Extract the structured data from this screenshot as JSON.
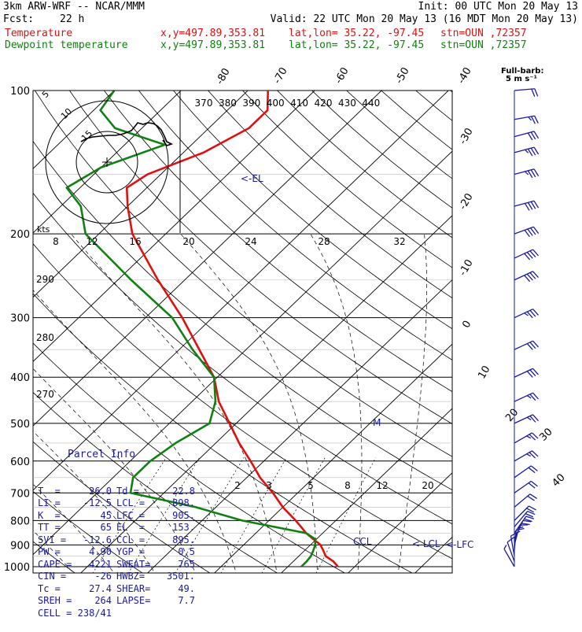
{
  "header": {
    "model": "3km ARW-WRF -- NCAR/MMM",
    "init": "Init: 00 UTC Mon 20 May 13",
    "fcst_label": "Fcst:",
    "fcst_value": "22 h",
    "valid": "Valid: 22 UTC Mon 20 May 13 (16 MDT Mon 20 May 13)",
    "temp_name": "Temperature",
    "dew_name": "Dewpoint temperature",
    "xy": "x,y=497.89,353.81",
    "latlon": "lat,lon= 35.22, -97.45",
    "stn": "stn=OUN ,72357"
  },
  "barb_legend": {
    "title": "Full-barb:",
    "value": "5 m s⁻¹"
  },
  "hodograph": {
    "units": "kts",
    "rings": [
      "5",
      "10",
      "15"
    ]
  },
  "annotations": {
    "el": "<-EL",
    "lcl": "< LCL",
    "lfc": "<-LFC",
    "ccl": "CCL",
    "m": "M"
  },
  "parcel_info": {
    "title": "Parcel Info",
    "rows": [
      [
        "T  =",
        "26.0",
        "Td =",
        "22.8"
      ],
      [
        "LI =",
        "-12.5",
        "LCL =",
        "898."
      ],
      [
        "K  =",
        "45",
        "LFC =",
        "905."
      ],
      [
        "TT =",
        "65",
        "EL  =",
        "153."
      ],
      [
        "SVI =",
        "-12.6",
        "CCL =",
        "895."
      ],
      [
        "PW =",
        "4.90",
        "YGP =",
        "0.5"
      ],
      [
        "CAPE =",
        "4221",
        "SWEAT=",
        "765"
      ],
      [
        "CIN =",
        "-26",
        "HWBZ=",
        "3501."
      ],
      [
        "Tc =",
        "27.4",
        "SHEAR=",
        "49."
      ],
      [
        "SREH =",
        "264",
        "LAPSE=",
        "7.7"
      ],
      [
        "CELL =",
        "238/41",
        "",
        ""
      ]
    ]
  },
  "chart_data": {
    "type": "skew-T log-p sounding",
    "y_axis": {
      "scale": "log",
      "ticks": [
        100,
        200,
        300,
        400,
        500,
        600,
        700,
        800,
        900,
        1000
      ],
      "ylim": [
        1000,
        100
      ]
    },
    "isotherms": [
      -80,
      -70,
      -60,
      -50,
      -40,
      -30,
      -20,
      -10,
      0,
      10,
      20,
      30,
      40
    ],
    "theta_e_labels": [
      370,
      380,
      390,
      400,
      410,
      420,
      430,
      440
    ],
    "theta_labels": [
      290,
      280,
      270
    ],
    "mixing_ratio_labels": [
      "2",
      "3",
      "5",
      "8",
      "12",
      "20"
    ],
    "hodograph_speed_labels": [
      "8",
      "12",
      "16",
      "20",
      "24",
      "28",
      "32"
    ],
    "series": [
      {
        "name": "Temperature",
        "color": "#e01010",
        "points": [
          [
            1000,
            27.5
          ],
          [
            975,
            26
          ],
          [
            950,
            24
          ],
          [
            925,
            22.8
          ],
          [
            900,
            21.5
          ],
          [
            875,
            19.5
          ],
          [
            850,
            17.5
          ],
          [
            825,
            15.8
          ],
          [
            800,
            14
          ],
          [
            750,
            10
          ],
          [
            700,
            6.3
          ],
          [
            650,
            2
          ],
          [
            600,
            -2
          ],
          [
            550,
            -6.5
          ],
          [
            500,
            -11
          ],
          [
            450,
            -16
          ],
          [
            400,
            -20.5
          ],
          [
            350,
            -27
          ],
          [
            300,
            -34.5
          ],
          [
            250,
            -44
          ],
          [
            200,
            -55
          ],
          [
            175,
            -60
          ],
          [
            160,
            -63
          ],
          [
            150,
            -62
          ],
          [
            135,
            -57
          ],
          [
            120,
            -54
          ],
          [
            110,
            -54
          ],
          [
            100,
            -57
          ]
        ]
      },
      {
        "name": "Dewpoint temperature",
        "color": "#108010",
        "points": [
          [
            1000,
            22
          ],
          [
            975,
            22
          ],
          [
            950,
            21.8
          ],
          [
            925,
            21.3
          ],
          [
            900,
            20.7
          ],
          [
            875,
            19.8
          ],
          [
            850,
            17.5
          ],
          [
            800,
            6
          ],
          [
            750,
            -3
          ],
          [
            700,
            -15
          ],
          [
            650,
            -17
          ],
          [
            600,
            -17
          ],
          [
            550,
            -16
          ],
          [
            500,
            -14
          ],
          [
            450,
            -16.5
          ],
          [
            400,
            -20.5
          ],
          [
            350,
            -28
          ],
          [
            300,
            -36
          ],
          [
            250,
            -48
          ],
          [
            200,
            -62
          ],
          [
            175,
            -67
          ],
          [
            160,
            -72
          ],
          [
            145,
            -70
          ],
          [
            130,
            -64
          ],
          [
            120,
            -74
          ],
          [
            110,
            -79
          ],
          [
            100,
            -80
          ]
        ]
      }
    ],
    "wind_barbs": [
      [
        1000,
        150,
        6
      ],
      [
        975,
        160,
        9
      ],
      [
        950,
        170,
        12
      ],
      [
        925,
        185,
        15
      ],
      [
        900,
        195,
        17
      ],
      [
        875,
        205,
        18
      ],
      [
        850,
        215,
        20
      ],
      [
        825,
        220,
        20
      ],
      [
        800,
        225,
        20
      ],
      [
        750,
        230,
        21
      ],
      [
        700,
        235,
        22
      ],
      [
        650,
        235,
        22
      ],
      [
        600,
        240,
        23
      ],
      [
        550,
        240,
        24
      ],
      [
        500,
        245,
        25
      ],
      [
        450,
        245,
        27
      ],
      [
        400,
        245,
        30
      ],
      [
        350,
        245,
        32
      ],
      [
        300,
        245,
        35
      ],
      [
        250,
        245,
        38
      ],
      [
        225,
        245,
        40
      ],
      [
        200,
        250,
        40
      ],
      [
        175,
        255,
        38
      ],
      [
        150,
        255,
        36
      ],
      [
        135,
        255,
        33
      ],
      [
        125,
        255,
        30
      ],
      [
        115,
        260,
        25
      ],
      [
        100,
        265,
        20
      ]
    ]
  }
}
